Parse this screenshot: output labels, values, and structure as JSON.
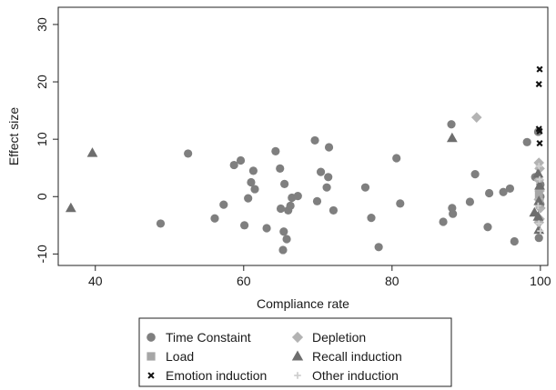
{
  "chart_data": {
    "type": "scatter",
    "title": "",
    "xlabel": "Compliance rate",
    "ylabel": "Effect size",
    "xlim": [
      35,
      101
    ],
    "ylim": [
      -12,
      33
    ],
    "xticks": [
      40,
      60,
      80,
      100
    ],
    "yticks": [
      -10,
      0,
      10,
      20,
      30
    ],
    "grid": false,
    "legend_position": "bottom",
    "colors": {
      "time": "#7f7f7f",
      "depletion": "#b3b3b3",
      "load": "#a6a6a6",
      "recall": "#6e6e6e",
      "emotion": "#111111",
      "other": "#cfcfcf"
    },
    "series": [
      {
        "name": "Time Constaint",
        "marker": "circle",
        "color_key": "time",
        "points": [
          [
            48.8,
            -4.7
          ],
          [
            52.5,
            7.5
          ],
          [
            56.1,
            -3.8
          ],
          [
            57.3,
            -1.4
          ],
          [
            58.7,
            5.5
          ],
          [
            59.6,
            6.3
          ],
          [
            60.1,
            -5.0
          ],
          [
            60.6,
            -0.3
          ],
          [
            61.0,
            2.5
          ],
          [
            61.3,
            4.5
          ],
          [
            61.5,
            1.3
          ],
          [
            63.1,
            -5.5
          ],
          [
            64.3,
            7.9
          ],
          [
            64.9,
            4.9
          ],
          [
            65.0,
            -2.1
          ],
          [
            65.3,
            -9.3
          ],
          [
            65.4,
            -6.1
          ],
          [
            65.5,
            2.2
          ],
          [
            65.8,
            -7.4
          ],
          [
            66.0,
            -2.4
          ],
          [
            66.3,
            -1.6
          ],
          [
            66.5,
            -0.2
          ],
          [
            67.3,
            0.1
          ],
          [
            69.6,
            9.8
          ],
          [
            69.9,
            -0.8
          ],
          [
            70.4,
            4.3
          ],
          [
            71.2,
            1.6
          ],
          [
            71.4,
            3.4
          ],
          [
            71.5,
            8.6
          ],
          [
            72.1,
            -2.4
          ],
          [
            76.4,
            1.6
          ],
          [
            77.2,
            -3.7
          ],
          [
            78.2,
            -8.8
          ],
          [
            80.6,
            6.7
          ],
          [
            81.1,
            -1.2
          ],
          [
            86.9,
            -4.4
          ],
          [
            88.0,
            12.6
          ],
          [
            88.1,
            -2.0
          ],
          [
            88.2,
            -3.0
          ],
          [
            90.5,
            -0.9
          ],
          [
            91.2,
            3.9
          ],
          [
            92.9,
            -5.3
          ],
          [
            93.1,
            0.6
          ],
          [
            95.0,
            0.8
          ],
          [
            95.9,
            1.4
          ],
          [
            96.5,
            -7.8
          ],
          [
            98.2,
            9.5
          ],
          [
            99.3,
            3.4
          ],
          [
            99.7,
            11.3
          ],
          [
            99.8,
            -7.2
          ],
          [
            100.0,
            0.0
          ],
          [
            100.0,
            -1.3
          ],
          [
            100.0,
            2.1
          ]
        ]
      },
      {
        "name": "Depletion",
        "marker": "diamond",
        "color_key": "depletion",
        "points": [
          [
            91.4,
            13.8
          ],
          [
            99.8,
            5.9
          ],
          [
            99.9,
            4.9
          ],
          [
            99.8,
            2.9
          ],
          [
            99.9,
            1.0
          ],
          [
            99.8,
            -0.5
          ],
          [
            100.0,
            -2.0
          ],
          [
            99.9,
            -3.9
          ],
          [
            99.8,
            -4.5
          ]
        ]
      },
      {
        "name": "Load",
        "marker": "square",
        "color_key": "load",
        "points": [
          [
            99.8,
            0.4
          ],
          [
            99.9,
            -1.2
          ]
        ]
      },
      {
        "name": "Recall induction",
        "marker": "triangle",
        "color_key": "recall",
        "points": [
          [
            36.7,
            -2.0
          ],
          [
            39.6,
            7.6
          ],
          [
            88.1,
            10.2
          ],
          [
            99.2,
            -2.8
          ],
          [
            99.7,
            4.0
          ],
          [
            99.9,
            1.9
          ],
          [
            99.8,
            -0.8
          ],
          [
            99.7,
            -3.5
          ],
          [
            99.8,
            -5.8
          ]
        ]
      },
      {
        "name": "Emotion induction",
        "marker": "cross",
        "color_key": "emotion",
        "points": [
          [
            99.9,
            22.2
          ],
          [
            99.8,
            19.6
          ],
          [
            99.8,
            11.8
          ],
          [
            99.9,
            9.3
          ],
          [
            99.9,
            11.4
          ]
        ]
      },
      {
        "name": "Other induction",
        "marker": "plus",
        "color_key": "other",
        "points": [
          [
            99.8,
            5.3
          ],
          [
            99.9,
            3.0
          ],
          [
            99.7,
            -1.6
          ],
          [
            99.8,
            -4.7
          ],
          [
            100.0,
            -6.0
          ]
        ]
      }
    ],
    "legend_order": [
      "Time Constaint",
      "Depletion",
      "Load",
      "Recall induction",
      "Emotion induction",
      "Other induction"
    ]
  }
}
